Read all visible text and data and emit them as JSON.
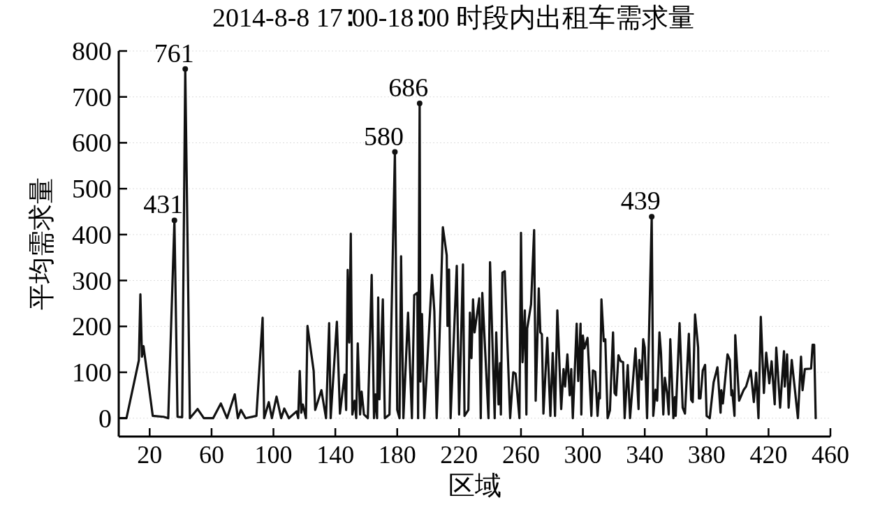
{
  "chart_data": {
    "type": "line",
    "title": "2014-8-8 17∶00-18∶00 时段内出租车需求量",
    "xlabel": "区域",
    "ylabel": "平均需求量",
    "xlim": [
      0,
      460
    ],
    "xticks": [
      20,
      60,
      100,
      140,
      180,
      220,
      260,
      300,
      340,
      380,
      420,
      460
    ],
    "ylim": [
      -40,
      800
    ],
    "yticks": [
      0,
      100,
      200,
      300,
      400,
      500,
      600,
      700,
      800
    ],
    "grid": "y",
    "marker": "none",
    "line_style": "solid",
    "annotations": [
      {
        "text": "431",
        "x": 36,
        "y": 431
      },
      {
        "text": "761",
        "x": 43,
        "y": 761
      },
      {
        "text": "580",
        "x": 178.5,
        "y": 580
      },
      {
        "text": "686",
        "x": 194.5,
        "y": 686
      },
      {
        "text": "439",
        "x": 344.5,
        "y": 439
      }
    ],
    "series": [
      {
        "color": "#111111",
        "x": [
          1,
          4,
          5,
          13,
          14,
          15,
          16,
          22,
          29,
          32,
          36,
          38,
          41,
          43,
          46,
          51,
          55,
          61,
          66,
          70,
          75,
          77,
          79,
          82,
          89,
          93,
          94,
          97,
          99,
          102,
          105,
          107,
          110,
          115,
          116,
          117,
          118,
          119,
          121,
          122,
          126,
          127,
          131,
          134,
          136,
          137,
          141,
          143,
          146,
          147,
          148,
          149,
          150,
          151,
          152.5,
          153.5,
          154.5,
          156,
          157,
          158.5,
          161,
          163.5,
          165,
          166,
          167,
          167.7,
          168.5,
          170.7,
          172,
          175,
          178.5,
          180,
          181.5,
          182.5,
          184,
          187,
          189.5,
          191,
          193,
          193.5,
          194.5,
          195,
          196,
          197.5,
          202.5,
          204,
          205.5,
          207,
          209.5,
          212,
          212.5,
          213.5,
          214.5,
          218.5,
          220,
          222.5,
          223.5,
          226,
          227,
          228,
          229,
          230,
          233,
          234,
          235,
          239,
          240,
          243,
          244,
          245.5,
          246.5,
          247,
          248,
          249.5,
          253,
          255,
          256.5,
          259,
          260,
          261,
          262.5,
          263.5,
          264,
          266.5,
          268.5,
          269.5,
          271.5,
          272.5,
          273.5,
          274.5,
          277,
          279,
          280.5,
          282,
          283.5,
          286,
          287.5,
          288.5,
          290,
          291.5,
          292.5,
          293.5,
          296,
          297,
          298.5,
          299,
          300,
          301,
          303,
          305.5,
          306.5,
          308,
          309.5,
          310.5,
          311,
          312,
          313.5,
          314.5,
          316,
          317.5,
          319.5,
          320.5,
          321.5,
          323,
          324.5,
          326,
          327,
          329,
          330.5,
          334,
          336,
          336.5,
          338,
          339,
          340,
          341.5,
          344.5,
          345.5,
          347,
          348,
          349.5,
          350.5,
          352,
          353,
          354.5,
          355.5,
          356.5,
          358.5,
          359.5,
          360,
          362.5,
          364.5,
          366,
          368.5,
          370,
          371,
          372.5,
          374.5,
          375,
          376,
          377.5,
          379,
          380,
          382,
          384.5,
          387,
          389,
          389.5,
          390.5,
          393.5,
          395,
          396,
          396.5,
          398,
          398.5,
          401,
          404,
          405.5,
          408.5,
          410.5,
          412,
          413.5,
          415,
          417,
          418.5,
          420.5,
          422,
          424,
          425,
          427.5,
          430,
          430.5,
          432,
          433,
          435,
          439,
          441,
          442,
          443.5,
          447.5,
          448.5,
          449.5,
          450.5
        ],
        "values": [
          0,
          0,
          0,
          126,
          270,
          134,
          157,
          5,
          3,
          0,
          431,
          3,
          2,
          761,
          0,
          20,
          0,
          0,
          32,
          0,
          52,
          0,
          18,
          0,
          5,
          219,
          0,
          35,
          0,
          47,
          0,
          21,
          0,
          15,
          0,
          103,
          12,
          30,
          0,
          201,
          103,
          18,
          61,
          0,
          207,
          0,
          210,
          10,
          95,
          18,
          323,
          165,
          402,
          8,
          38,
          0,
          163,
          8,
          58,
          8,
          0,
          312,
          0,
          52,
          0,
          263,
          41,
          259,
          0,
          8,
          580,
          18,
          0,
          353,
          0,
          230,
          0,
          268,
          273,
          0,
          686,
          80,
          227,
          0,
          312,
          233,
          0,
          137,
          416,
          355,
          201,
          324,
          0,
          332,
          8,
          335,
          5,
          18,
          230,
          131,
          259,
          187,
          261,
          0,
          273,
          0,
          340,
          0,
          187,
          30,
          120,
          8,
          317,
          320,
          0,
          100,
          97,
          0,
          404,
          122,
          235,
          8,
          195,
          248,
          410,
          38,
          283,
          187,
          183,
          10,
          175,
          5,
          142,
          5,
          235,
          20,
          107,
          69,
          139,
          50,
          107,
          0,
          206,
          81,
          206,
          8,
          180,
          152,
          175,
          5,
          104,
          101,
          5,
          55,
          43,
          259,
          168,
          172,
          0,
          17,
          187,
          55,
          50,
          137,
          124,
          122,
          0,
          116,
          0,
          152,
          20,
          127,
          84,
          172,
          154,
          0,
          439,
          5,
          62,
          38,
          187,
          142,
          8,
          88,
          53,
          8,
          172,
          0,
          46,
          5,
          207,
          23,
          10,
          184,
          40,
          35,
          226,
          154,
          43,
          43,
          104,
          116,
          5,
          0,
          78,
          111,
          12,
          61,
          32,
          139,
          127,
          50,
          61,
          5,
          181,
          38,
          62,
          69,
          104,
          35,
          99,
          0,
          221,
          55,
          143,
          76,
          124,
          30,
          154,
          23,
          146,
          69,
          139,
          23,
          127,
          0,
          134,
          61,
          107,
          108,
          160,
          160,
          0
        ]
      }
    ]
  }
}
